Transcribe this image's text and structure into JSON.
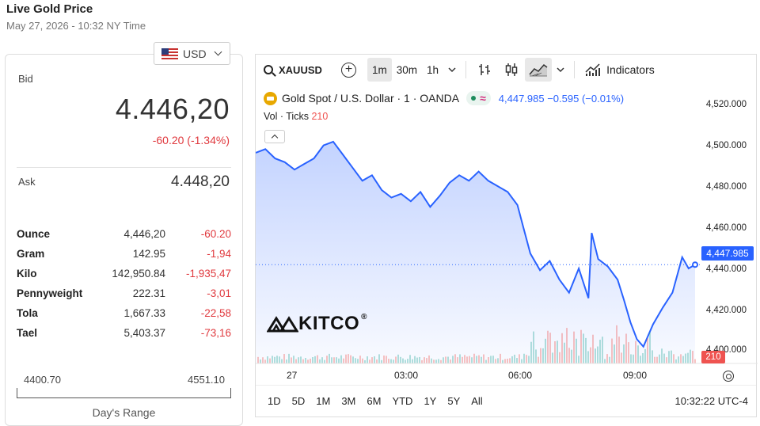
{
  "page": {
    "title": "Live Gold Price",
    "subtitle": "May 27, 2026 - 10:32 NY Time"
  },
  "currency": {
    "selected": "USD"
  },
  "quote": {
    "bid_label": "Bid",
    "bid": "4.446,20",
    "change": "-60.20 (-1.34%)",
    "ask_label": "Ask",
    "ask": "4.448,20"
  },
  "units": [
    {
      "name": "Ounce",
      "price": "4,446,20",
      "change": "-60.20"
    },
    {
      "name": "Gram",
      "price": "142.95",
      "change": "-1,94"
    },
    {
      "name": "Kilo",
      "price": "142,950.84",
      "change": "-1,935,47"
    },
    {
      "name": "Pennyweight",
      "price": "222.31",
      "change": "-3,01"
    },
    {
      "name": "Tola",
      "price": "1,667.33",
      "change": "-22,58"
    },
    {
      "name": "Tael",
      "price": "5,403.37",
      "change": "-73,16"
    }
  ],
  "day_range": {
    "low": "4400.70",
    "high": "4551.10",
    "label": "Day's Range"
  },
  "chart_toolbar": {
    "symbol": "XAUUSD",
    "timeframes": [
      "1m",
      "30m",
      "1h"
    ],
    "active_timeframe": "1m",
    "indicators_label": "Indicators"
  },
  "chart_legend": {
    "instrument": "Gold Spot / U.S. Dollar · 1 · OANDA",
    "quote": "4,447.985 −0.595 (−0.01%)",
    "vol_label": "Vol · Ticks",
    "vol_value": "210"
  },
  "chart_bottom": {
    "ranges": [
      "1D",
      "5D",
      "1M",
      "3M",
      "6M",
      "YTD",
      "1Y",
      "5Y",
      "All"
    ],
    "clock": "10:32:22 UTC-4"
  },
  "brand": {
    "logo_text": "KITCO"
  },
  "colors": {
    "accent": "#2962ff",
    "down": "#e0393e",
    "up": "#1d8c5c",
    "gold": "#e8a800"
  },
  "chart_data": {
    "type": "area",
    "x_ticks": [
      "27",
      "03:00",
      "06:00",
      "09:00"
    ],
    "y_ticks": [
      "4,520.000",
      "4,500.000",
      "4,480.000",
      "4,460.000",
      "4,440.000",
      "4,420.000",
      "4,400.000"
    ],
    "ylim": [
      4395,
      4525
    ],
    "current_price_label": "4,447.985",
    "current_price": 4447.985,
    "current_volume_label": "210",
    "series": [
      {
        "values": [
          [
            0,
            4508
          ],
          [
            0.3,
            4510
          ],
          [
            0.6,
            4505
          ],
          [
            0.9,
            4503
          ],
          [
            1.2,
            4499
          ],
          [
            1.5,
            4502
          ],
          [
            1.8,
            4505
          ],
          [
            2.1,
            4512
          ],
          [
            2.4,
            4514
          ],
          [
            2.7,
            4507
          ],
          [
            3.0,
            4500
          ],
          [
            3.3,
            4493
          ],
          [
            3.6,
            4496
          ],
          [
            3.9,
            4488
          ],
          [
            4.2,
            4484
          ],
          [
            4.5,
            4486
          ],
          [
            4.8,
            4482
          ],
          [
            5.1,
            4487
          ],
          [
            5.4,
            4479
          ],
          [
            5.7,
            4485
          ],
          [
            6.0,
            4492
          ],
          [
            6.3,
            4496
          ],
          [
            6.6,
            4493
          ],
          [
            6.9,
            4498
          ],
          [
            7.2,
            4493
          ],
          [
            7.5,
            4490
          ],
          [
            7.8,
            4487
          ],
          [
            8.1,
            4480
          ],
          [
            8.3,
            4467
          ],
          [
            8.5,
            4454
          ],
          [
            8.8,
            4445
          ],
          [
            9.1,
            4450
          ],
          [
            9.4,
            4440
          ],
          [
            9.7,
            4433
          ],
          [
            10.0,
            4446
          ],
          [
            10.3,
            4430
          ],
          [
            10.4,
            4465
          ],
          [
            10.6,
            4451
          ],
          [
            10.9,
            4447
          ],
          [
            11.2,
            4440
          ],
          [
            11.4,
            4429
          ],
          [
            11.6,
            4417
          ],
          [
            11.8,
            4408
          ],
          [
            12.0,
            4404
          ],
          [
            12.3,
            4416
          ],
          [
            12.6,
            4425
          ],
          [
            12.9,
            4433
          ],
          [
            13.2,
            4452
          ],
          [
            13.4,
            4446
          ],
          [
            13.6,
            4448
          ]
        ]
      }
    ]
  }
}
